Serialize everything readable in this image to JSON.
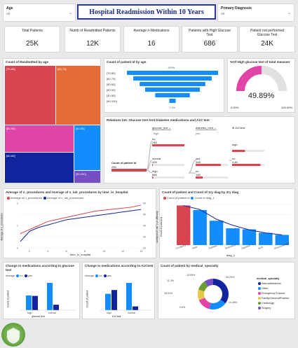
{
  "colors": {
    "blue": "#118dff",
    "navy": "#12239e",
    "orange": "#e66c37",
    "red": "#d64550",
    "magenta": "#e044a7",
    "purple": "#744ec2",
    "yellow": "#e7c64a",
    "green": "#6b9e2e",
    "gray": "#b0b0b0"
  },
  "header": {
    "title": "Hospital Readmission Within 10 Years"
  },
  "slicers": [
    {
      "label": "Age",
      "value": "All"
    },
    {
      "label": "Primary Diagnosis",
      "value": "All"
    }
  ],
  "kpis": [
    {
      "label": "Total Patients",
      "value": "25K"
    },
    {
      "label": "Numb of Readmitted Patients",
      "value": "12K"
    },
    {
      "label": "Average n-Medications",
      "value": "16"
    },
    {
      "label": "Patients with High Glucose Test",
      "value": "686"
    },
    {
      "label": "Patient not performed Glucose Test",
      "value": "24K"
    }
  ],
  "treemap": {
    "title": "Count of Readmitted by age",
    "tiles": [
      "[70-80]",
      "[60-70]",
      "[80-90]",
      "[40-50]",
      "[50-60]",
      "[90-100]"
    ]
  },
  "funnel": {
    "title": "Count of patient Id by age",
    "top_pct": "100%",
    "bottom_pct": "7.1%",
    "rows": [
      "[70-80]",
      "[60-70]",
      "[50-60]",
      "[80-90]",
      "[40-50]",
      "[90-100]"
    ],
    "values": [
      100,
      86,
      72,
      60,
      38,
      7
    ]
  },
  "gauge": {
    "title": "%Of High glucose test of total measuer",
    "value": "49.89%",
    "min": "0.00%",
    "max": "100.00%",
    "fraction": 0.4989
  },
  "decomp": {
    "title": "Relations bet. Glucose test And Diabetes medications and A1C test",
    "root_label": "Count of patient id",
    "root_value": "25K",
    "col_heads": [
      "glucose_test",
      "diabetes_med",
      "A1Ctest"
    ],
    "col_subs": [
      "high",
      "yes"
    ],
    "nodes": [
      {
        "label": "no",
        "value": "24K"
      },
      {
        "label": "normal",
        "value": "409"
      },
      {
        "label": "high",
        "value": "686"
      },
      {
        "label": "yes",
        "value": "538"
      },
      {
        "label": "no",
        "value": "148"
      },
      {
        "label": "no",
        "value": "4.4K"
      },
      {
        "label": "high",
        "value": "..."
      }
    ]
  },
  "linechart": {
    "title": "Average of n_procedures and Average of n_lab_procedures by time_in_hospital",
    "legend": [
      "Average of n_procedures",
      "Average of n_lab_procedures"
    ],
    "xlabel": "time_in_hospital",
    "ylabel_left": "Average of n_procedures",
    "ylabel_right": "Average of n_lab_procedures"
  },
  "paretochart": {
    "title": "Count of patient and Count of 1ry diag by 2ry diag_",
    "legend": [
      "Count of patient id",
      "Count of diag_1"
    ],
    "xlabel": "diag_2",
    "ylabel": "Count of patient id"
  },
  "bars1": {
    "title": "Change in medications according to glucose test",
    "legend_label": "change",
    "legend": [
      "no",
      "yes"
    ],
    "xlabel": "glucose test",
    "ylabel": "Count of patient",
    "categories": [
      "high",
      "normal"
    ]
  },
  "bars2": {
    "title": "Change in medications according to A1Ctest",
    "legend_label": "change",
    "legend": [
      "no",
      "yes"
    ],
    "xlabel": "A1Ctest",
    "ylabel": "Count of patient",
    "categories": [
      "high",
      "normal"
    ]
  },
  "donut": {
    "title": "Count of patient by medical_specialty",
    "legend_title": "medical_specialty",
    "legend": [
      "InternalMedicine",
      "Other",
      "Emergency/Trauma",
      "Family/GeneralPractice",
      "Cardiology",
      "Surgery"
    ],
    "labels": [
      "35.29%",
      "14.28%",
      "9.6%",
      "18.94%",
      "11.3%",
      "10.59%"
    ]
  },
  "chart_data": [
    {
      "type": "bar",
      "title": "Count of patient Id by age",
      "categories": [
        "[70-80]",
        "[60-70]",
        "[50-60]",
        "[80-90]",
        "[40-50]",
        "[90-100]"
      ],
      "values": [
        100,
        86,
        72,
        60,
        38,
        7
      ]
    },
    {
      "type": "line",
      "title": "Average of n_procedures and Average of n_lab_procedures by time_in_hospital",
      "x": [
        1,
        2,
        3,
        4,
        5,
        6,
        7,
        8,
        9,
        10,
        11,
        12,
        13,
        14
      ],
      "series": [
        {
          "name": "Average of n_procedures",
          "values": [
            0.7,
            0.9,
            1.1,
            1.3,
            1.4,
            1.5,
            1.6,
            1.7,
            1.8,
            1.85,
            1.9,
            1.95,
            2.0,
            2.1
          ]
        },
        {
          "name": "Average of n_lab_procedures",
          "values": [
            20,
            28,
            31,
            33,
            35,
            37,
            38,
            39,
            40,
            41,
            42,
            43,
            44,
            45
          ]
        }
      ],
      "xlabel": "time_in_hospital",
      "xlim": [
        1,
        14
      ]
    },
    {
      "type": "bar",
      "title": "Count of patient and Count of 1ry diag by 2ry diag_",
      "categories": [
        "Circulatory",
        "Other",
        "Diabetes",
        "Respiratory",
        "Digestive",
        "Injury",
        "Musculoskeletal"
      ],
      "series": [
        {
          "name": "Count of patient id",
          "values": [
            7.8,
            6.9,
            4.8,
            3.3,
            3.1,
            2.4,
            2.0
          ]
        },
        {
          "name": "Count of diag_1",
          "values": [
            7.8,
            7.0,
            5.1,
            3.9,
            3.0,
            2.4,
            2.0
          ]
        }
      ],
      "ylabel": "Count of patient id"
    },
    {
      "type": "bar",
      "title": "Change in medications according to glucose test",
      "categories": [
        "high",
        "normal"
      ],
      "series": [
        {
          "name": "no",
          "values": [
            700,
            1300
          ]
        },
        {
          "name": "yes",
          "values": [
            680,
            260
          ]
        }
      ]
    },
    {
      "type": "bar",
      "title": "Change in medications according to A1Ctest",
      "categories": [
        "high",
        "normal"
      ],
      "series": [
        {
          "name": "no",
          "values": [
            780,
            1300
          ]
        },
        {
          "name": "yes",
          "values": [
            960,
            180
          ]
        }
      ]
    },
    {
      "type": "pie",
      "title": "Count of patient by medical_specialty",
      "categories": [
        "InternalMedicine",
        "Other",
        "Emergency/Trauma",
        "Family/GeneralPractice",
        "Cardiology",
        "Surgery"
      ],
      "values": [
        35.29,
        18.94,
        14.28,
        11.3,
        10.59,
        9.6
      ]
    }
  ]
}
